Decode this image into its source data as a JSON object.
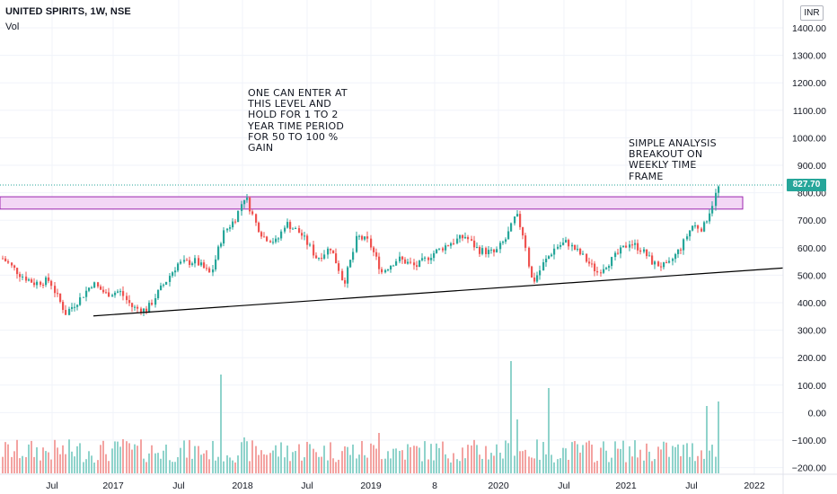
{
  "header": {
    "title": "UNITED SPIRITS, 1W, NSE",
    "volume_label": "Vol",
    "currency": "INR"
  },
  "annotations": {
    "entry_note": "ONE CAN ENTER AT\nTHIS LEVEL AND\nHOLD FOR 1 TO 2\nYEAR TIME PERIOD\nFOR 50 TO 100 %\nGAIN",
    "breakout_note": "SIMPLE ANALYSIS\nBREAKOUT ON\nWEEKLY TIME\nFRAME"
  },
  "colors": {
    "up": "#26a69a",
    "down": "#ef5350",
    "zone_fill": "#f3d6f5",
    "zone_border": "#9c27b0",
    "trendline": "#000000"
  },
  "chart_data": {
    "type": "candlestick",
    "title": "UNITED SPIRITS, 1W, NSE",
    "last_price": "827.70",
    "price_axis": {
      "ticks": [
        "1400.00",
        "1300.00",
        "1200.00",
        "1100.00",
        "1000.00",
        "900.00",
        "800.00",
        "700.00",
        "600.00",
        "500.00",
        "400.00",
        "300.00",
        "200.00",
        "100.00",
        "0.00",
        "−100.00",
        "−200.00"
      ],
      "range": [
        -200,
        1400
      ]
    },
    "time_axis": {
      "ticks": [
        "Jul",
        "2017",
        "Jul",
        "2018",
        "Jul",
        "2019",
        "8",
        "2020",
        "Jul",
        "2021",
        "Jul",
        "2022"
      ]
    },
    "resistance_zone": {
      "low": 740,
      "high": 785
    },
    "trendline": {
      "start_price": 350,
      "end_price": 525
    },
    "anchors": [
      {
        "t": 0,
        "p": 560
      },
      {
        "t": 20,
        "p": 500
      },
      {
        "t": 35,
        "p": 470
      },
      {
        "t": 52,
        "p": 480
      },
      {
        "t": 70,
        "p": 360
      },
      {
        "t": 88,
        "p": 420
      },
      {
        "t": 100,
        "p": 470
      },
      {
        "t": 115,
        "p": 430
      },
      {
        "t": 130,
        "p": 440
      },
      {
        "t": 145,
        "p": 380
      },
      {
        "t": 160,
        "p": 370
      },
      {
        "t": 178,
        "p": 460
      },
      {
        "t": 195,
        "p": 540
      },
      {
        "t": 215,
        "p": 550
      },
      {
        "t": 232,
        "p": 500
      },
      {
        "t": 245,
        "p": 650
      },
      {
        "t": 258,
        "p": 700
      },
      {
        "t": 270,
        "p": 790
      },
      {
        "t": 280,
        "p": 700
      },
      {
        "t": 290,
        "p": 640
      },
      {
        "t": 305,
        "p": 620
      },
      {
        "t": 315,
        "p": 690
      },
      {
        "t": 332,
        "p": 650
      },
      {
        "t": 350,
        "p": 560
      },
      {
        "t": 365,
        "p": 600
      },
      {
        "t": 380,
        "p": 470
      },
      {
        "t": 395,
        "p": 640
      },
      {
        "t": 408,
        "p": 620
      },
      {
        "t": 422,
        "p": 510
      },
      {
        "t": 440,
        "p": 560
      },
      {
        "t": 460,
        "p": 530
      },
      {
        "t": 480,
        "p": 580
      },
      {
        "t": 500,
        "p": 620
      },
      {
        "t": 515,
        "p": 640
      },
      {
        "t": 530,
        "p": 590
      },
      {
        "t": 548,
        "p": 580
      },
      {
        "t": 560,
        "p": 630
      },
      {
        "t": 572,
        "p": 720
      },
      {
        "t": 580,
        "p": 640
      },
      {
        "t": 590,
        "p": 470
      },
      {
        "t": 602,
        "p": 540
      },
      {
        "t": 615,
        "p": 600
      },
      {
        "t": 628,
        "p": 620
      },
      {
        "t": 645,
        "p": 570
      },
      {
        "t": 662,
        "p": 510
      },
      {
        "t": 680,
        "p": 560
      },
      {
        "t": 698,
        "p": 620
      },
      {
        "t": 712,
        "p": 590
      },
      {
        "t": 725,
        "p": 540
      },
      {
        "t": 740,
        "p": 530
      },
      {
        "t": 755,
        "p": 600
      },
      {
        "t": 768,
        "p": 680
      },
      {
        "t": 780,
        "p": 670
      },
      {
        "t": 790,
        "p": 760
      },
      {
        "t": 798,
        "p": 827
      }
    ],
    "volume_spikes": [
      {
        "t": 134,
        "h": 38
      },
      {
        "t": 183,
        "h": 32
      },
      {
        "t": 242,
        "h": 110
      },
      {
        "t": 268,
        "h": 40
      },
      {
        "t": 340,
        "h": 35
      },
      {
        "t": 420,
        "h": 45
      },
      {
        "t": 565,
        "h": 125
      },
      {
        "t": 572,
        "h": 60
      },
      {
        "t": 600,
        "h": 120
      },
      {
        "t": 607,
        "h": 95
      },
      {
        "t": 785,
        "h": 75
      },
      {
        "t": 797,
        "h": 80
      }
    ]
  }
}
